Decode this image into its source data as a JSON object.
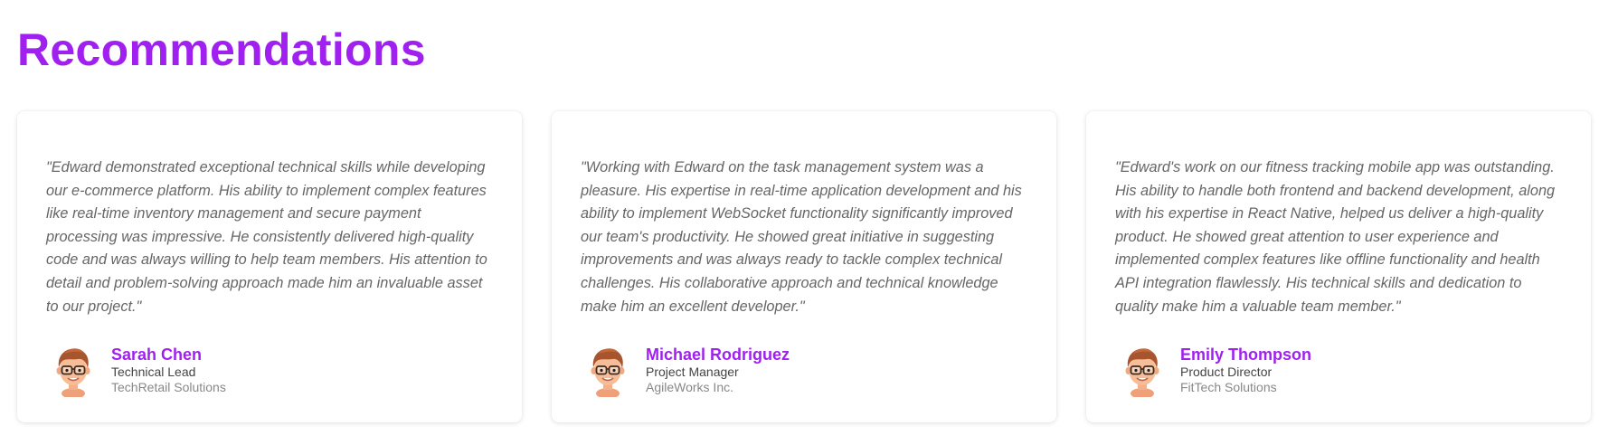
{
  "page": {
    "title": "Recommendations",
    "accent_color": "#a020f0"
  },
  "recommendations": [
    {
      "quote": "\"Edward demonstrated exceptional technical skills while developing our e-commerce platform. His ability to implement complex features like real-time inventory management and secure payment processing was impressive. He consistently delivered high-quality code and was always willing to help team members. His attention to detail and problem-solving approach made him an invaluable asset to our project.\"",
      "name": "Sarah Chen",
      "role": "Technical Lead",
      "company": "TechRetail Solutions",
      "avatar_icon": "cartoon-avatar-icon"
    },
    {
      "quote": "\"Working with Edward on the task management system was a pleasure. His expertise in real-time application development and his ability to implement WebSocket functionality significantly improved our team's productivity. He showed great initiative in suggesting improvements and was always ready to tackle complex technical challenges. His collaborative approach and technical knowledge make him an excellent developer.\"",
      "name": "Michael Rodriguez",
      "role": "Project Manager",
      "company": "AgileWorks Inc.",
      "avatar_icon": "cartoon-avatar-icon"
    },
    {
      "quote": "\"Edward's work on our fitness tracking mobile app was outstanding. His ability to handle both frontend and backend development, along with his expertise in React Native, helped us deliver a high-quality product. He showed great attention to user experience and implemented complex features like offline functionality and health API integration flawlessly. His technical skills and dedication to quality make him a valuable team member.\"",
      "name": "Emily Thompson",
      "role": "Product Director",
      "company": "FitTech Solutions",
      "avatar_icon": "cartoon-avatar-icon"
    }
  ]
}
